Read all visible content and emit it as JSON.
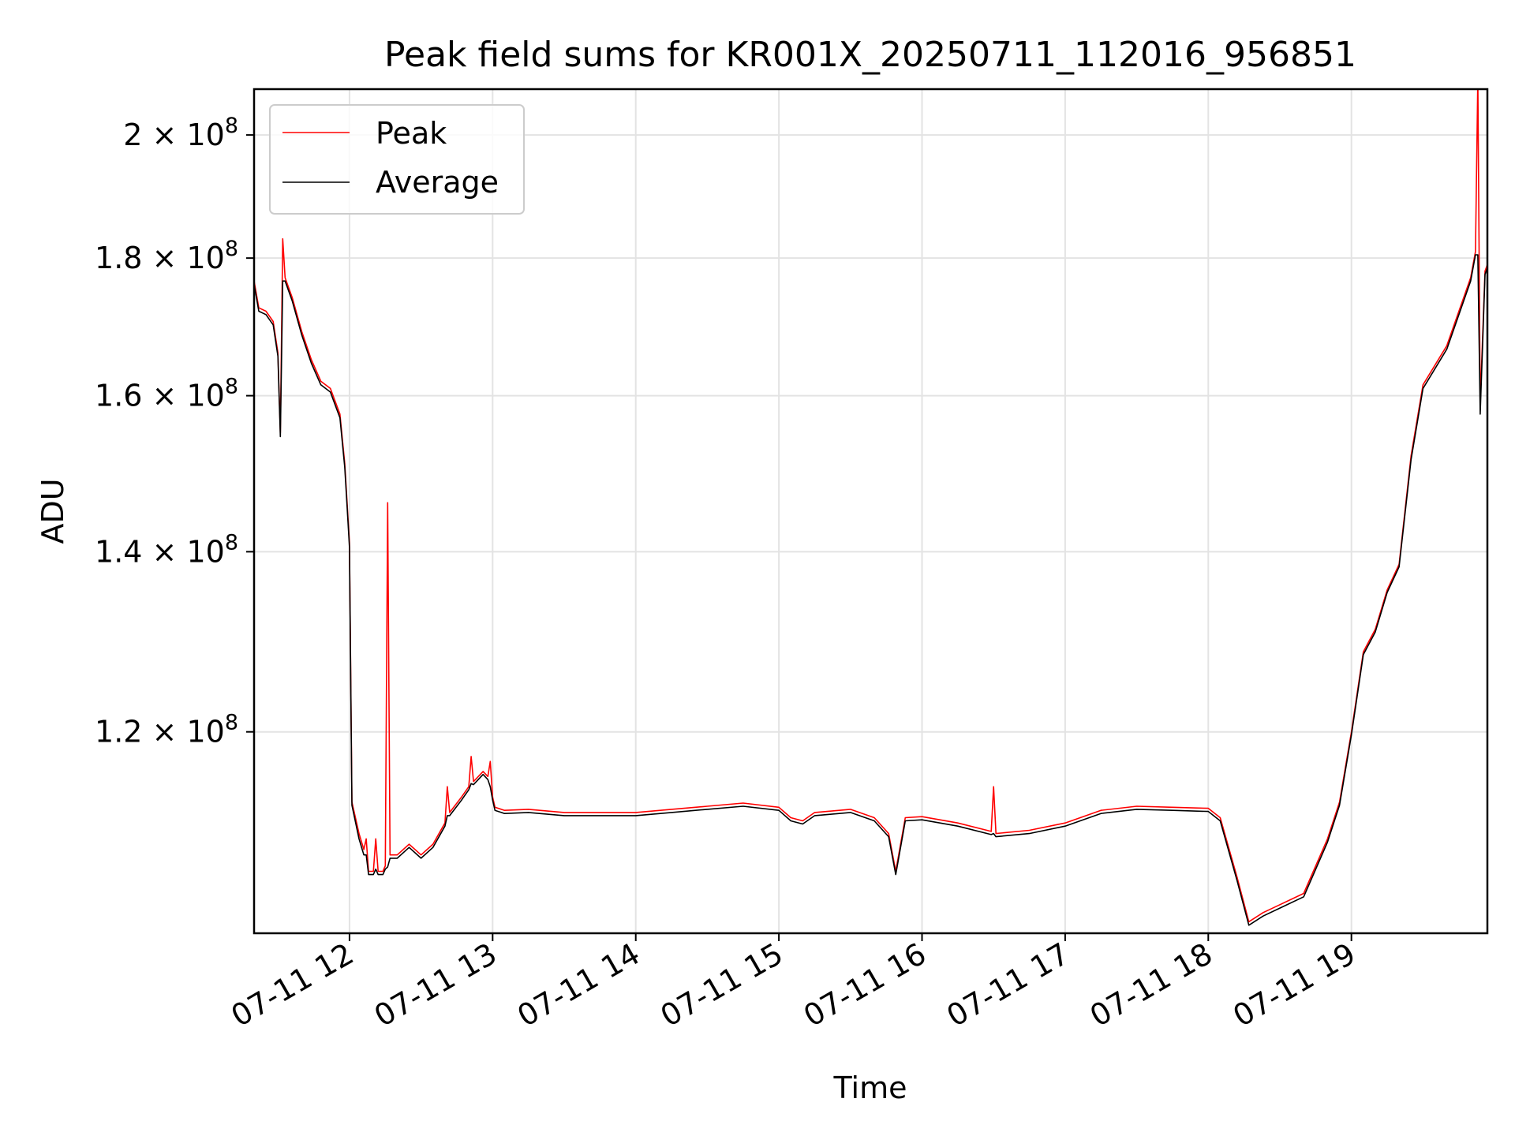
{
  "chart_data": {
    "type": "line",
    "title": "Peak field sums for KR001X_20250711_112016_956851",
    "xlabel": "Time",
    "ylabel": "ADU",
    "y_scale": "log",
    "xlim": [
      "2025-07-11 11:20",
      "2025-07-11 19:57"
    ],
    "ylim": [
      101000000,
      208000000
    ],
    "grid": true,
    "legend_position": "top-left",
    "x_ticks": [
      {
        "value": "2025-07-11 12:00",
        "label": "07-11 12"
      },
      {
        "value": "2025-07-11 13:00",
        "label": "07-11 13"
      },
      {
        "value": "2025-07-11 14:00",
        "label": "07-11 14"
      },
      {
        "value": "2025-07-11 15:00",
        "label": "07-11 15"
      },
      {
        "value": "2025-07-11 16:00",
        "label": "07-11 16"
      },
      {
        "value": "2025-07-11 17:00",
        "label": "07-11 17"
      },
      {
        "value": "2025-07-11 18:00",
        "label": "07-11 18"
      },
      {
        "value": "2025-07-11 19:00",
        "label": "07-11 19"
      }
    ],
    "y_ticks": [
      {
        "value": 120000000,
        "mantissa": "1.2",
        "exp": "8"
      },
      {
        "value": 140000000,
        "mantissa": "1.4",
        "exp": "8"
      },
      {
        "value": 160000000,
        "mantissa": "1.6",
        "exp": "8"
      },
      {
        "value": 180000000,
        "mantissa": "1.8",
        "exp": "8"
      },
      {
        "value": 200000000,
        "mantissa": "2",
        "exp": "8"
      }
    ],
    "colors": {
      "peak": "#ff0000",
      "average": "#000000",
      "grid": "#e3e3e3"
    },
    "series": [
      {
        "name": "Peak",
        "color": "#ff0000",
        "points": [
          [
            "2025-07-11 11:20",
            176500000
          ],
          [
            "2025-07-11 11:22",
            172500000
          ],
          [
            "2025-07-11 11:25",
            172000000
          ],
          [
            "2025-07-11 11:28",
            170500000
          ],
          [
            "2025-07-11 11:30",
            166000000
          ],
          [
            "2025-07-11 11:31",
            155000000
          ],
          [
            "2025-07-11 11:32",
            183000000
          ],
          [
            "2025-07-11 11:33",
            177000000
          ],
          [
            "2025-07-11 11:36",
            174000000
          ],
          [
            "2025-07-11 11:40",
            169000000
          ],
          [
            "2025-07-11 11:44",
            165000000
          ],
          [
            "2025-07-11 11:48",
            162000000
          ],
          [
            "2025-07-11 11:52",
            161000000
          ],
          [
            "2025-07-11 11:56",
            157500000
          ],
          [
            "2025-07-11 11:58",
            151000000
          ],
          [
            "2025-07-11 11:59",
            146000000
          ],
          [
            "2025-07-11 12:00",
            141000000
          ],
          [
            "2025-07-11 12:01",
            113000000
          ],
          [
            "2025-07-11 12:04",
            110000000
          ],
          [
            "2025-07-11 12:06",
            108500000
          ],
          [
            "2025-07-11 12:07",
            109500000
          ],
          [
            "2025-07-11 12:08",
            106500000
          ],
          [
            "2025-07-11 12:10",
            106500000
          ],
          [
            "2025-07-11 12:11",
            109500000
          ],
          [
            "2025-07-11 12:12",
            106500000
          ],
          [
            "2025-07-11 12:14",
            106500000
          ],
          [
            "2025-07-11 12:15",
            107000000
          ],
          [
            "2025-07-11 12:16",
            146000000
          ],
          [
            "2025-07-11 12:17",
            108000000
          ],
          [
            "2025-07-11 12:20",
            108000000
          ],
          [
            "2025-07-11 12:25",
            109000000
          ],
          [
            "2025-07-11 12:30",
            108000000
          ],
          [
            "2025-07-11 12:35",
            109000000
          ],
          [
            "2025-07-11 12:40",
            111000000
          ],
          [
            "2025-07-11 12:41",
            114500000
          ],
          [
            "2025-07-11 12:42",
            112000000
          ],
          [
            "2025-07-11 12:47",
            113500000
          ],
          [
            "2025-07-11 12:50",
            114500000
          ],
          [
            "2025-07-11 12:51",
            117500000
          ],
          [
            "2025-07-11 12:52",
            115000000
          ],
          [
            "2025-07-11 12:56",
            116000000
          ],
          [
            "2025-07-11 12:58",
            115500000
          ],
          [
            "2025-07-11 12:59",
            117000000
          ],
          [
            "2025-07-11 13:00",
            113500000
          ],
          [
            "2025-07-11 13:01",
            112500000
          ],
          [
            "2025-07-11 13:05",
            112200000
          ],
          [
            "2025-07-11 13:15",
            112300000
          ],
          [
            "2025-07-11 13:30",
            112000000
          ],
          [
            "2025-07-11 14:00",
            112000000
          ],
          [
            "2025-07-11 14:15",
            112300000
          ],
          [
            "2025-07-11 14:30",
            112600000
          ],
          [
            "2025-07-11 14:45",
            112900000
          ],
          [
            "2025-07-11 15:00",
            112500000
          ],
          [
            "2025-07-11 15:05",
            111500000
          ],
          [
            "2025-07-11 15:10",
            111200000
          ],
          [
            "2025-07-11 15:15",
            112000000
          ],
          [
            "2025-07-11 15:30",
            112300000
          ],
          [
            "2025-07-11 15:40",
            111500000
          ],
          [
            "2025-07-11 15:46",
            110000000
          ],
          [
            "2025-07-11 15:49",
            106500000
          ],
          [
            "2025-07-11 15:53",
            111500000
          ],
          [
            "2025-07-11 16:00",
            111600000
          ],
          [
            "2025-07-11 16:15",
            111000000
          ],
          [
            "2025-07-11 16:29",
            110200000
          ],
          [
            "2025-07-11 16:30",
            114500000
          ],
          [
            "2025-07-11 16:31",
            110000000
          ],
          [
            "2025-07-11 16:45",
            110300000
          ],
          [
            "2025-07-11 17:00",
            111000000
          ],
          [
            "2025-07-11 17:15",
            112200000
          ],
          [
            "2025-07-11 17:30",
            112600000
          ],
          [
            "2025-07-11 17:45",
            112500000
          ],
          [
            "2025-07-11 18:00",
            112400000
          ],
          [
            "2025-07-11 18:05",
            111500000
          ],
          [
            "2025-07-11 18:12",
            106000000
          ],
          [
            "2025-07-11 18:17",
            102000000
          ],
          [
            "2025-07-11 18:23",
            102800000
          ],
          [
            "2025-07-11 18:30",
            103500000
          ],
          [
            "2025-07-11 18:40",
            104500000
          ],
          [
            "2025-07-11 18:50",
            109500000
          ],
          [
            "2025-07-11 18:55",
            113000000
          ],
          [
            "2025-07-11 19:00",
            120000000
          ],
          [
            "2025-07-11 19:05",
            128500000
          ],
          [
            "2025-07-11 19:10",
            131000000
          ],
          [
            "2025-07-11 19:15",
            135500000
          ],
          [
            "2025-07-11 19:20",
            138500000
          ],
          [
            "2025-07-11 19:25",
            152000000
          ],
          [
            "2025-07-11 19:30",
            161500000
          ],
          [
            "2025-07-11 19:40",
            167000000
          ],
          [
            "2025-07-11 19:50",
            177000000
          ],
          [
            "2025-07-11 19:52",
            181000000
          ],
          [
            "2025-07-11 19:53",
            210000000
          ],
          [
            "2025-07-11 19:54",
            159000000
          ],
          [
            "2025-07-11 19:56",
            178000000
          ],
          [
            "2025-07-11 19:57",
            179000000
          ]
        ]
      },
      {
        "name": "Average",
        "color": "#000000",
        "points": [
          [
            "2025-07-11 11:20",
            176000000
          ],
          [
            "2025-07-11 11:22",
            172000000
          ],
          [
            "2025-07-11 11:25",
            171500000
          ],
          [
            "2025-07-11 11:28",
            170000000
          ],
          [
            "2025-07-11 11:30",
            165500000
          ],
          [
            "2025-07-11 11:31",
            154500000
          ],
          [
            "2025-07-11 11:32",
            176500000
          ],
          [
            "2025-07-11 11:33",
            176500000
          ],
          [
            "2025-07-11 11:36",
            173500000
          ],
          [
            "2025-07-11 11:40",
            168500000
          ],
          [
            "2025-07-11 11:44",
            164500000
          ],
          [
            "2025-07-11 11:48",
            161500000
          ],
          [
            "2025-07-11 11:52",
            160500000
          ],
          [
            "2025-07-11 11:56",
            157000000
          ],
          [
            "2025-07-11 11:58",
            150500000
          ],
          [
            "2025-07-11 11:59",
            145500000
          ],
          [
            "2025-07-11 12:00",
            140500000
          ],
          [
            "2025-07-11 12:01",
            112700000
          ],
          [
            "2025-07-11 12:04",
            109500000
          ],
          [
            "2025-07-11 12:06",
            108000000
          ],
          [
            "2025-07-11 12:07",
            108000000
          ],
          [
            "2025-07-11 12:08",
            106200000
          ],
          [
            "2025-07-11 12:10",
            106200000
          ],
          [
            "2025-07-11 12:11",
            106700000
          ],
          [
            "2025-07-11 12:12",
            106200000
          ],
          [
            "2025-07-11 12:14",
            106200000
          ],
          [
            "2025-07-11 12:15",
            106700000
          ],
          [
            "2025-07-11 12:16",
            106900000
          ],
          [
            "2025-07-11 12:17",
            107700000
          ],
          [
            "2025-07-11 12:20",
            107700000
          ],
          [
            "2025-07-11 12:25",
            108700000
          ],
          [
            "2025-07-11 12:30",
            107700000
          ],
          [
            "2025-07-11 12:35",
            108700000
          ],
          [
            "2025-07-11 12:40",
            110700000
          ],
          [
            "2025-07-11 12:41",
            111700000
          ],
          [
            "2025-07-11 12:42",
            111700000
          ],
          [
            "2025-07-11 12:47",
            113200000
          ],
          [
            "2025-07-11 12:50",
            114200000
          ],
          [
            "2025-07-11 12:51",
            114800000
          ],
          [
            "2025-07-11 12:52",
            114700000
          ],
          [
            "2025-07-11 12:56",
            115700000
          ],
          [
            "2025-07-11 12:58",
            115200000
          ],
          [
            "2025-07-11 12:59",
            114500000
          ],
          [
            "2025-07-11 13:00",
            113200000
          ],
          [
            "2025-07-11 13:01",
            112200000
          ],
          [
            "2025-07-11 13:05",
            111900000
          ],
          [
            "2025-07-11 13:15",
            112000000
          ],
          [
            "2025-07-11 13:30",
            111700000
          ],
          [
            "2025-07-11 14:00",
            111700000
          ],
          [
            "2025-07-11 14:15",
            112000000
          ],
          [
            "2025-07-11 14:30",
            112300000
          ],
          [
            "2025-07-11 14:45",
            112600000
          ],
          [
            "2025-07-11 15:00",
            112200000
          ],
          [
            "2025-07-11 15:05",
            111200000
          ],
          [
            "2025-07-11 15:10",
            110900000
          ],
          [
            "2025-07-11 15:15",
            111700000
          ],
          [
            "2025-07-11 15:30",
            112000000
          ],
          [
            "2025-07-11 15:40",
            111200000
          ],
          [
            "2025-07-11 15:46",
            109700000
          ],
          [
            "2025-07-11 15:49",
            106200000
          ],
          [
            "2025-07-11 15:53",
            111200000
          ],
          [
            "2025-07-11 16:00",
            111300000
          ],
          [
            "2025-07-11 16:15",
            110700000
          ],
          [
            "2025-07-11 16:29",
            109900000
          ],
          [
            "2025-07-11 16:30",
            110000000
          ],
          [
            "2025-07-11 16:31",
            109700000
          ],
          [
            "2025-07-11 16:45",
            110000000
          ],
          [
            "2025-07-11 17:00",
            110700000
          ],
          [
            "2025-07-11 17:15",
            111900000
          ],
          [
            "2025-07-11 17:30",
            112300000
          ],
          [
            "2025-07-11 17:45",
            112200000
          ],
          [
            "2025-07-11 18:00",
            112100000
          ],
          [
            "2025-07-11 18:05",
            111200000
          ],
          [
            "2025-07-11 18:12",
            105700000
          ],
          [
            "2025-07-11 18:17",
            101700000
          ],
          [
            "2025-07-11 18:23",
            102500000
          ],
          [
            "2025-07-11 18:30",
            103200000
          ],
          [
            "2025-07-11 18:40",
            104200000
          ],
          [
            "2025-07-11 18:50",
            109200000
          ],
          [
            "2025-07-11 18:55",
            112700000
          ],
          [
            "2025-07-11 19:00",
            119700000
          ],
          [
            "2025-07-11 19:05",
            128200000
          ],
          [
            "2025-07-11 19:10",
            130700000
          ],
          [
            "2025-07-11 19:15",
            135200000
          ],
          [
            "2025-07-11 19:20",
            138200000
          ],
          [
            "2025-07-11 19:25",
            151500000
          ],
          [
            "2025-07-11 19:30",
            161000000
          ],
          [
            "2025-07-11 19:40",
            166500000
          ],
          [
            "2025-07-11 19:50",
            176500000
          ],
          [
            "2025-07-11 19:52",
            180500000
          ],
          [
            "2025-07-11 19:53",
            180500000
          ],
          [
            "2025-07-11 19:54",
            157500000
          ],
          [
            "2025-07-11 19:56",
            177500000
          ],
          [
            "2025-07-11 19:57",
            178500000
          ]
        ]
      }
    ]
  }
}
